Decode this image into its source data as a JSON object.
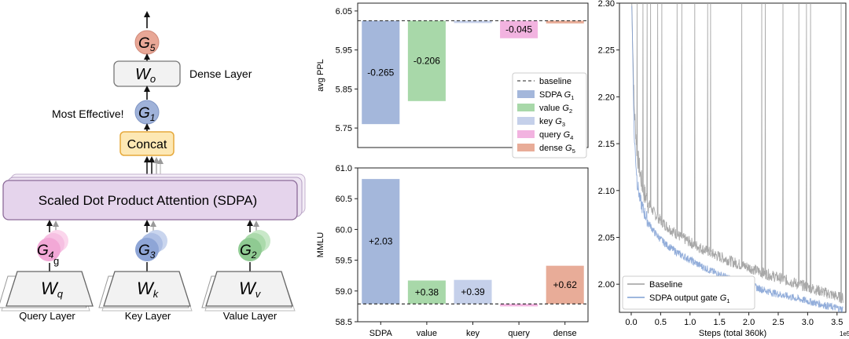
{
  "diagram": {
    "gates": {
      "g1": "G1",
      "g2": "G2",
      "g3": "G3",
      "g4": "G4",
      "g5": "G5"
    },
    "gate_letter": "G",
    "gate_sub": {
      "g1": "1",
      "g2": "2",
      "g3": "3",
      "g4": "4",
      "g5": "5"
    },
    "wo_main": "W",
    "wo_sub": "o",
    "wq_main": "W",
    "wq_sub": "q",
    "wk_main": "W",
    "wk_sub": "k",
    "wv_main": "W",
    "wv_sub": "v",
    "dense_layer_label": "Dense Layer",
    "most_effective_label": "Most Effective!",
    "concat_label": "Concat",
    "sdpa_label": "Scaled Dot Product Attention (SDPA)",
    "stray_g": "g",
    "query_layer_label": "Query Layer",
    "key_layer_label": "Key Layer",
    "value_layer_label": "Value Layer",
    "colors": {
      "g1": "#9fb2d9",
      "g2": "#8fca92",
      "g3": "#8ea5d6",
      "g4": "#f2a8d6",
      "g5": "#e8a796",
      "concat_fill": "#fde8b4",
      "concat_stroke": "#e6a93c",
      "sdpa_fill": "#e5d4ec",
      "sdpa_stroke": "#8c6b99"
    }
  },
  "chart_data": [
    {
      "type": "bar",
      "ylabel": "avg PPL",
      "ylim": [
        5.7,
        6.07
      ],
      "yticks": [
        "6.05",
        "5.95",
        "5.85",
        "5.75"
      ],
      "ytick_values": [
        6.05,
        5.95,
        5.85,
        5.75
      ],
      "baseline": 6.025,
      "categories": [
        "SDPA",
        "value",
        "key",
        "query",
        "dense"
      ],
      "values": [
        -0.265,
        -0.206,
        -0.006,
        -0.045,
        -0.007
      ],
      "data_labels": [
        "-0.265",
        "-0.206",
        "",
        "-0.045",
        ""
      ],
      "colors": [
        "#a4b7db",
        "#a8d8a9",
        "#c5d0ea",
        "#f2b3e0",
        "#e8ac98"
      ],
      "legend": {
        "placement": "right",
        "items": [
          {
            "label": "baseline",
            "style": "dashed"
          },
          {
            "label": "SDPA ",
            "sym": "G",
            "sub": "1",
            "color": "#a4b7db"
          },
          {
            "label": "value ",
            "sym": "G",
            "sub": "2",
            "color": "#a8d8a9"
          },
          {
            "label": "key ",
            "sym": "G",
            "sub": "3",
            "color": "#c5d0ea"
          },
          {
            "label": "query ",
            "sym": "G",
            "sub": "4",
            "color": "#f2b3e0"
          },
          {
            "label": "dense ",
            "sym": "G",
            "sub": "5",
            "color": "#e8ac98"
          }
        ]
      }
    },
    {
      "type": "bar",
      "ylabel": "MMLU",
      "ylim": [
        58.5,
        61.0
      ],
      "yticks": [
        "61.0",
        "60.5",
        "60.0",
        "59.5",
        "59.0",
        "58.5"
      ],
      "ytick_values": [
        61.0,
        60.5,
        60.0,
        59.5,
        59.0,
        58.5
      ],
      "baseline": 58.79,
      "categories": [
        "SDPA",
        "value",
        "key",
        "query",
        "dense"
      ],
      "xtick_labels": [
        "SDPA",
        "value",
        "key",
        "query",
        "dense"
      ],
      "values": [
        2.03,
        0.38,
        0.39,
        -0.04,
        0.62
      ],
      "data_labels": [
        "+2.03",
        "+0.38",
        "+0.39",
        "",
        "+0.62"
      ],
      "colors": [
        "#a4b7db",
        "#a8d8a9",
        "#c5d0ea",
        "#f2b3e0",
        "#e8ac98"
      ]
    },
    {
      "type": "line",
      "xlabel": "Steps (total 360k)",
      "x_scale_note": "1e5",
      "xlim": [
        -0.2,
        3.65
      ],
      "ylim": [
        1.97,
        2.3
      ],
      "xticks": [
        "0.0",
        "0.5",
        "1.0",
        "1.5",
        "2.0",
        "2.5",
        "3.0",
        "3.5"
      ],
      "xtick_values": [
        0.0,
        0.5,
        1.0,
        1.5,
        2.0,
        2.5,
        3.0,
        3.5
      ],
      "yticks": [
        "2.30",
        "2.25",
        "2.20",
        "2.15",
        "2.10",
        "2.05",
        "2.00"
      ],
      "ytick_values": [
        2.3,
        2.25,
        2.2,
        2.15,
        2.1,
        2.05,
        2.0
      ],
      "legend": {
        "placement": "lower-left",
        "items": [
          {
            "label": "Baseline",
            "color": "#9e9e9e"
          },
          {
            "label": "SDPA output gate ",
            "sym": "G",
            "sub": "1",
            "color": "#7f9fd4"
          }
        ]
      },
      "series": [
        {
          "name": "Baseline",
          "color": "#9e9e9e",
          "x": [
            0.01,
            0.05,
            0.1,
            0.15,
            0.2,
            0.3,
            0.4,
            0.5,
            0.6,
            0.8,
            1.0,
            1.2,
            1.4,
            1.6,
            1.8,
            2.0,
            2.2,
            2.4,
            2.6,
            2.8,
            3.0,
            3.2,
            3.4,
            3.6
          ],
          "y": [
            2.3,
            2.19,
            2.14,
            2.12,
            2.1,
            2.085,
            2.075,
            2.068,
            2.062,
            2.052,
            2.045,
            2.038,
            2.032,
            2.027,
            2.022,
            2.018,
            2.013,
            2.009,
            2.005,
            2.001,
            1.997,
            1.993,
            1.989,
            1.985
          ],
          "spikes_x": [
            0.1,
            0.2,
            0.27,
            0.33,
            0.45,
            0.52,
            0.78,
            0.86,
            1.08,
            1.3,
            1.35,
            1.88,
            2.22,
            2.28,
            2.58,
            2.85,
            2.98,
            3.05,
            3.57
          ],
          "spikes_y": [
            2.3,
            2.3,
            2.3,
            2.3,
            2.3,
            2.3,
            2.3,
            2.3,
            2.3,
            2.3,
            2.3,
            2.3,
            2.3,
            2.3,
            2.3,
            2.3,
            2.3,
            2.3,
            2.3
          ]
        },
        {
          "name": "SDPA output gate G1",
          "color": "#7f9fd4",
          "x": [
            0.01,
            0.05,
            0.1,
            0.15,
            0.2,
            0.3,
            0.4,
            0.5,
            0.6,
            0.8,
            1.0,
            1.2,
            1.4,
            1.6,
            1.8,
            2.0,
            2.2,
            2.4,
            2.6,
            2.8,
            3.0,
            3.2,
            3.4,
            3.6
          ],
          "y": [
            2.3,
            2.16,
            2.11,
            2.09,
            2.08,
            2.065,
            2.055,
            2.048,
            2.042,
            2.033,
            2.026,
            2.019,
            2.013,
            2.008,
            2.003,
            1.999,
            1.995,
            1.991,
            1.988,
            1.985,
            1.982,
            1.979,
            1.976,
            1.973
          ]
        }
      ]
    }
  ]
}
